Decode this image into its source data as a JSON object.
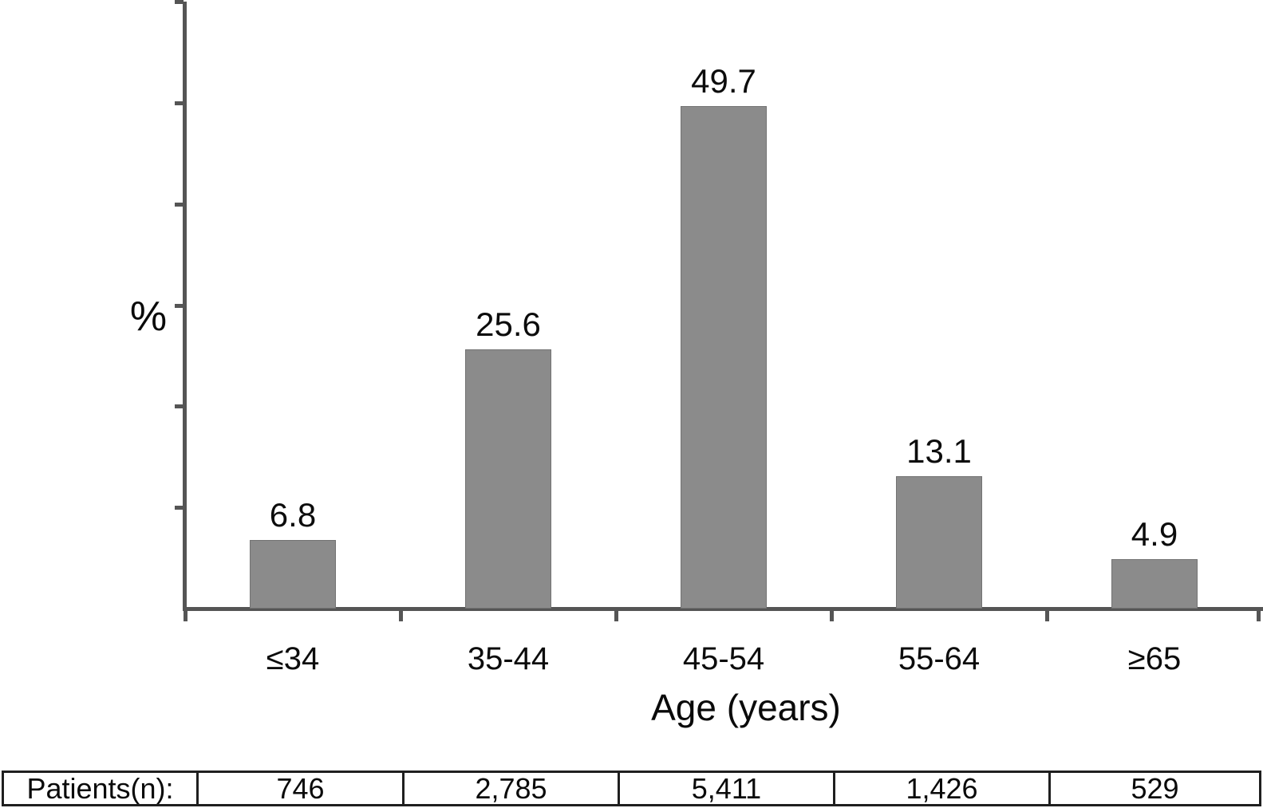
{
  "chart_data": {
    "type": "bar",
    "title": "",
    "categories": [
      "≤34",
      "35-44",
      "45-54",
      "55-64",
      "≥65"
    ],
    "values": [
      6.8,
      25.6,
      49.7,
      13.1,
      4.9
    ],
    "value_labels": [
      "6.8",
      "25.6",
      "49.7",
      "13.1",
      "4.9"
    ],
    "xlabel": "Age (years)",
    "ylabel": "%",
    "ylim": [
      0,
      60
    ],
    "ytick_interval": 10,
    "grid": false,
    "legend": "none",
    "bar_color": "#8b8b8b",
    "axis_color": "#555555",
    "table": {
      "row_label": "Patients(n):",
      "values": [
        "746",
        "2,785",
        "5,411",
        "1,426",
        "529"
      ]
    }
  }
}
